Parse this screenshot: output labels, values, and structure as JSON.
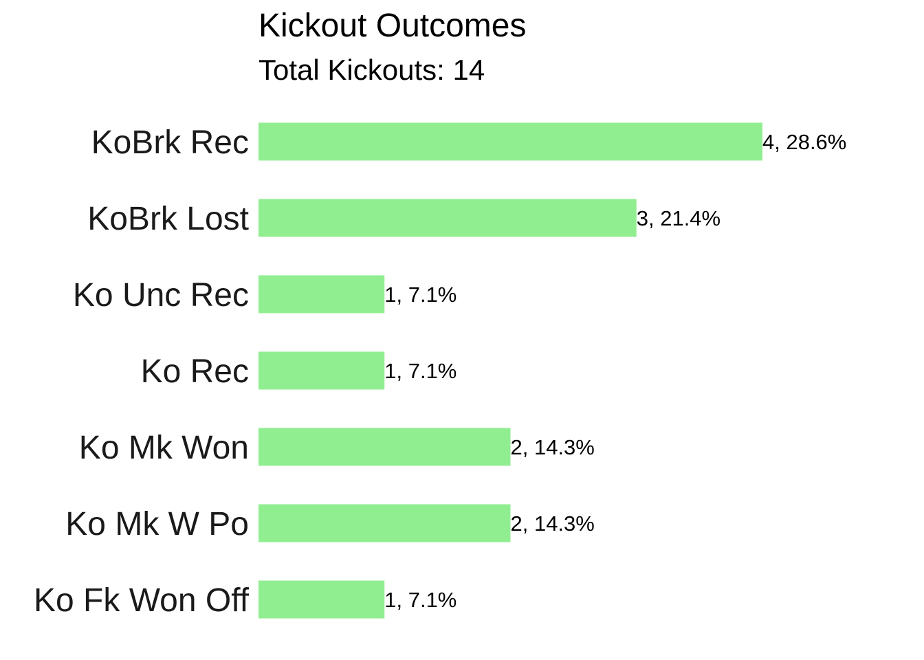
{
  "chart_data": {
    "type": "bar",
    "orientation": "horizontal",
    "title": "Kickout Outcomes",
    "subtitle": "Total Kickouts: 14",
    "categories": [
      "KoBrk Rec",
      "KoBrk Lost",
      "Ko Unc Rec",
      "Ko Rec",
      "Ko Mk Won",
      "Ko Mk W Po",
      "Ko Fk Won Off"
    ],
    "values": [
      4,
      3,
      1,
      1,
      2,
      2,
      1
    ],
    "data_labels": [
      "4, 28.6%",
      "3, 21.4%",
      "1, 7.1%",
      "1, 7.1%",
      "2, 14.3%",
      "2, 14.3%",
      "1, 7.1%"
    ],
    "xlim": [
      0,
      4
    ],
    "bar_color": "#90EE90",
    "grid": false,
    "xlabel": "",
    "ylabel": ""
  }
}
